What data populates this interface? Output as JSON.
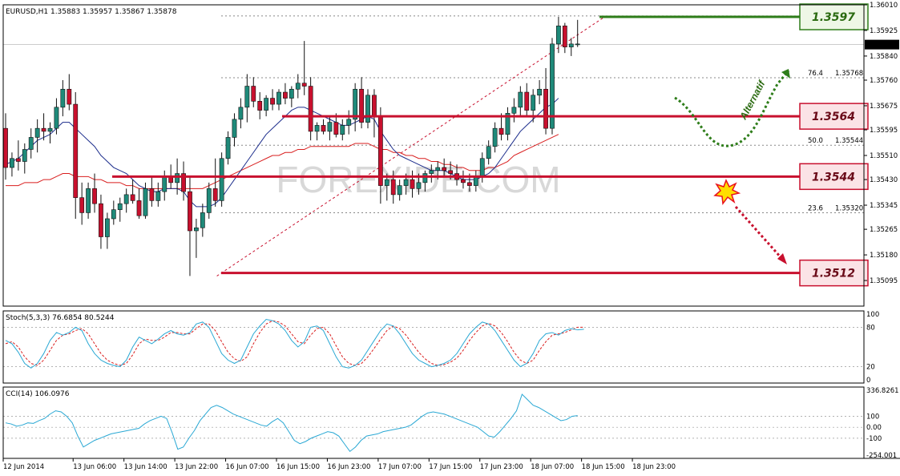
{
  "window": {
    "symbol_header": "EURUSD,H1  1.35883 1.35957 1.35867 1.35878",
    "watermark": "FOREXIDE.COM"
  },
  "colors": {
    "bull_candle": "#1f8a7a",
    "bear_candle": "#c8102e",
    "support_resistance": "#c8102e",
    "target_green": "#2e7d1a",
    "ma_fast": "#1c2d8c",
    "ma_slow": "#d91f1f",
    "stoch_main": "#2aa8d4",
    "stoch_signal": "#d91f1f",
    "cci": "#2aa8d4",
    "current_price_box": "#000000"
  },
  "chart_data": [
    {
      "type": "candlestick",
      "symbol": "EURUSD",
      "timeframe": "H1",
      "ohlc_header": {
        "open": 1.35883,
        "high": 1.35957,
        "low": 1.35867,
        "close": 1.35878
      },
      "ylim": [
        1.3501,
        1.3601
      ],
      "y_ticks": [
        1.3601,
        1.35925,
        1.3584,
        1.3576,
        1.35675,
        1.35595,
        1.3551,
        1.3543,
        1.35345,
        1.35265,
        1.3518,
        1.35095
      ],
      "y_tick_labels": [
        "1.36010",
        "1.35925",
        "1.35840",
        "1.35760",
        "1.35675",
        "1.35595",
        "1.35510",
        "1.35430",
        "1.35345",
        "1.35265",
        "1.35180",
        "1.35095"
      ],
      "x_tick_labels": [
        "12 Jun 2014",
        "13 Jun 06:00",
        "13 Jun 14:00",
        "13 Jun 22:00",
        "16 Jun 07:00",
        "16 Jun 15:00",
        "16 Jun 23:00",
        "17 Jun 07:00",
        "17 Jun 15:00",
        "17 Jun 23:00",
        "18 Jun 07:00",
        "18 Jun 15:00",
        "18 Jun 23:00"
      ],
      "x_tick_index": [
        0,
        11,
        19,
        27,
        35,
        43,
        51,
        59,
        67,
        75,
        83,
        91,
        99
      ],
      "current_price": 1.35878,
      "current_price_label": "1.35878",
      "candles": [
        [
          1.356,
          1.3565,
          1.3543,
          1.3547
        ],
        [
          1.3547,
          1.3552,
          1.3544,
          1.355
        ],
        [
          1.355,
          1.3556,
          1.3546,
          1.3549
        ],
        [
          1.3549,
          1.3555,
          1.3545,
          1.3553
        ],
        [
          1.3553,
          1.356,
          1.355,
          1.3557
        ],
        [
          1.3557,
          1.3563,
          1.3552,
          1.356
        ],
        [
          1.356,
          1.3565,
          1.3556,
          1.3559
        ],
        [
          1.3559,
          1.3562,
          1.3555,
          1.356
        ],
        [
          1.356,
          1.357,
          1.3558,
          1.3567
        ],
        [
          1.3567,
          1.3576,
          1.3564,
          1.3573
        ],
        [
          1.3573,
          1.3578,
          1.3566,
          1.3568
        ],
        [
          1.3568,
          1.3572,
          1.353,
          1.3537
        ],
        [
          1.3537,
          1.3542,
          1.3528,
          1.3532
        ],
        [
          1.3532,
          1.3542,
          1.353,
          1.354
        ],
        [
          1.354,
          1.3545,
          1.3532,
          1.3535
        ],
        [
          1.3535,
          1.3538,
          1.352,
          1.3524
        ],
        [
          1.3524,
          1.3532,
          1.352,
          1.353
        ],
        [
          1.353,
          1.3536,
          1.3528,
          1.3533
        ],
        [
          1.3533,
          1.3537,
          1.3529,
          1.3535
        ],
        [
          1.3535,
          1.354,
          1.3532,
          1.3538
        ],
        [
          1.3538,
          1.3543,
          1.3535,
          1.3536
        ],
        [
          1.3536,
          1.354,
          1.353,
          1.3531
        ],
        [
          1.3531,
          1.3542,
          1.353,
          1.354
        ],
        [
          1.354,
          1.3544,
          1.3534,
          1.3536
        ],
        [
          1.3536,
          1.3542,
          1.3534,
          1.3539
        ],
        [
          1.3539,
          1.3546,
          1.3536,
          1.3544
        ],
        [
          1.3544,
          1.3548,
          1.354,
          1.3542
        ],
        [
          1.3542,
          1.355,
          1.3538,
          1.3545
        ],
        [
          1.3545,
          1.3549,
          1.3536,
          1.3539
        ],
        [
          1.3539,
          1.3544,
          1.3511,
          1.3526
        ],
        [
          1.3526,
          1.353,
          1.3517,
          1.3527
        ],
        [
          1.3527,
          1.3535,
          1.3524,
          1.3532
        ],
        [
          1.3532,
          1.3542,
          1.353,
          1.354
        ],
        [
          1.354,
          1.355,
          1.3534,
          1.3536
        ],
        [
          1.3536,
          1.3552,
          1.3534,
          1.355
        ],
        [
          1.355,
          1.3559,
          1.3548,
          1.3557
        ],
        [
          1.3557,
          1.3565,
          1.3554,
          1.3563
        ],
        [
          1.3563,
          1.357,
          1.356,
          1.3567
        ],
        [
          1.3567,
          1.3578,
          1.3562,
          1.3574
        ],
        [
          1.3574,
          1.3577,
          1.3567,
          1.3569
        ],
        [
          1.3569,
          1.3572,
          1.3563,
          1.3566
        ],
        [
          1.3566,
          1.3571,
          1.3564,
          1.357
        ],
        [
          1.357,
          1.3573,
          1.3566,
          1.3568
        ],
        [
          1.3568,
          1.3573,
          1.3566,
          1.3572
        ],
        [
          1.3572,
          1.3575,
          1.3568,
          1.357
        ],
        [
          1.357,
          1.3574,
          1.3567,
          1.3573
        ],
        [
          1.3573,
          1.3578,
          1.357,
          1.3575
        ],
        [
          1.3575,
          1.3589,
          1.3571,
          1.3574
        ],
        [
          1.3574,
          1.3577,
          1.3556,
          1.3559
        ],
        [
          1.3559,
          1.3562,
          1.3556,
          1.3561
        ],
        [
          1.3561,
          1.3563,
          1.3558,
          1.3559
        ],
        [
          1.3559,
          1.3564,
          1.3556,
          1.3562
        ],
        [
          1.3562,
          1.3565,
          1.3557,
          1.3558
        ],
        [
          1.3558,
          1.3563,
          1.3556,
          1.3561
        ],
        [
          1.3561,
          1.3566,
          1.3558,
          1.3563
        ],
        [
          1.3563,
          1.3575,
          1.3559,
          1.3573
        ],
        [
          1.3573,
          1.3577,
          1.356,
          1.3562
        ],
        [
          1.3562,
          1.3573,
          1.356,
          1.3571
        ],
        [
          1.3571,
          1.3573,
          1.3557,
          1.3564
        ],
        [
          1.3564,
          1.3567,
          1.3535,
          1.3541
        ],
        [
          1.3541,
          1.3545,
          1.3536,
          1.3543
        ],
        [
          1.3543,
          1.3546,
          1.3535,
          1.3538
        ],
        [
          1.3538,
          1.3543,
          1.3536,
          1.3541
        ],
        [
          1.3541,
          1.3545,
          1.3538,
          1.3543
        ],
        [
          1.3543,
          1.3546,
          1.3537,
          1.354
        ],
        [
          1.354,
          1.3545,
          1.3538,
          1.3542
        ],
        [
          1.3542,
          1.3546,
          1.3539,
          1.3545
        ],
        [
          1.3545,
          1.3548,
          1.3542,
          1.3546
        ],
        [
          1.3546,
          1.3549,
          1.3543,
          1.3547
        ],
        [
          1.3547,
          1.355,
          1.3544,
          1.3546
        ],
        [
          1.3546,
          1.3549,
          1.3543,
          1.3545
        ],
        [
          1.3545,
          1.3548,
          1.3541,
          1.3543
        ],
        [
          1.3543,
          1.3546,
          1.354,
          1.3542
        ],
        [
          1.3542,
          1.3545,
          1.3539,
          1.3541
        ],
        [
          1.3541,
          1.3546,
          1.3539,
          1.3544
        ],
        [
          1.3544,
          1.3552,
          1.3542,
          1.355
        ],
        [
          1.355,
          1.3556,
          1.3548,
          1.3554
        ],
        [
          1.3554,
          1.3562,
          1.3552,
          1.356
        ],
        [
          1.356,
          1.3565,
          1.3556,
          1.3558
        ],
        [
          1.3558,
          1.3567,
          1.3556,
          1.3565
        ],
        [
          1.3565,
          1.357,
          1.3562,
          1.3567
        ],
        [
          1.3567,
          1.3574,
          1.3564,
          1.3572
        ],
        [
          1.3572,
          1.3575,
          1.3564,
          1.3566
        ],
        [
          1.3566,
          1.3573,
          1.3562,
          1.3571
        ],
        [
          1.3571,
          1.3576,
          1.3568,
          1.3573
        ],
        [
          1.3573,
          1.358,
          1.3558,
          1.356
        ],
        [
          1.356,
          1.359,
          1.3558,
          1.3588
        ],
        [
          1.3588,
          1.3597,
          1.3585,
          1.3594
        ],
        [
          1.3594,
          1.3595,
          1.3585,
          1.3587
        ],
        [
          1.3587,
          1.359,
          1.3584,
          1.3588
        ],
        [
          1.3588,
          1.3596,
          1.3587,
          1.3588
        ]
      ],
      "ma_fast": [
        1.3548,
        1.3549,
        1.355,
        1.3552,
        1.3554,
        1.3556,
        1.3557,
        1.3558,
        1.356,
        1.3562,
        1.3562,
        1.356,
        1.3558,
        1.3556,
        1.3554,
        1.3551,
        1.3549,
        1.3547,
        1.3546,
        1.3545,
        1.3543,
        1.3541,
        1.354,
        1.3539,
        1.3539,
        1.354,
        1.354,
        1.354,
        1.3539,
        1.3536,
        1.3534,
        1.3534,
        1.3534,
        1.3535,
        1.3537,
        1.354,
        1.3543,
        1.3546,
        1.3549,
        1.3552,
        1.3555,
        1.3558,
        1.356,
        1.3562,
        1.3564,
        1.3566,
        1.3567,
        1.3567,
        1.3566,
        1.3565,
        1.3564,
        1.3563,
        1.3562,
        1.3561,
        1.3561,
        1.3562,
        1.3563,
        1.3564,
        1.3563,
        1.3559,
        1.3556,
        1.3553,
        1.3551,
        1.355,
        1.3549,
        1.3548,
        1.3547,
        1.3546,
        1.3546,
        1.3546,
        1.3545,
        1.3544,
        1.3543,
        1.3543,
        1.3543,
        1.3544,
        1.3545,
        1.3547,
        1.355,
        1.3553,
        1.3556,
        1.3559,
        1.3561,
        1.3563,
        1.3565,
        1.3567,
        1.3568,
        1.357
      ],
      "ma_slow": [
        1.3541,
        1.3541,
        1.3541,
        1.3542,
        1.3542,
        1.3542,
        1.3543,
        1.3543,
        1.3544,
        1.3545,
        1.3545,
        1.3544,
        1.3544,
        1.3544,
        1.3543,
        1.3543,
        1.3542,
        1.3542,
        1.3542,
        1.3541,
        1.3541,
        1.354,
        1.354,
        1.354,
        1.354,
        1.354,
        1.354,
        1.354,
        1.354,
        1.354,
        1.354,
        1.354,
        1.3541,
        1.3542,
        1.3543,
        1.3544,
        1.3545,
        1.3546,
        1.3547,
        1.3548,
        1.3549,
        1.355,
        1.3551,
        1.3551,
        1.3552,
        1.3552,
        1.3553,
        1.3553,
        1.3554,
        1.3554,
        1.3554,
        1.3554,
        1.3554,
        1.3554,
        1.3554,
        1.3555,
        1.3555,
        1.3555,
        1.3554,
        1.3553,
        1.3553,
        1.3552,
        1.3552,
        1.3551,
        1.3551,
        1.355,
        1.355,
        1.3549,
        1.3549,
        1.3548,
        1.3548,
        1.3547,
        1.3547,
        1.3546,
        1.3546,
        1.3546,
        1.3547,
        1.3547,
        1.3548,
        1.3549,
        1.3551,
        1.3552,
        1.3553,
        1.3554,
        1.3555,
        1.3556,
        1.3557,
        1.3558
      ],
      "levels": [
        {
          "price": 1.3597,
          "label": "1.3597",
          "kind": "target"
        },
        {
          "price": 1.3564,
          "label": "1.3564",
          "kind": "resistance"
        },
        {
          "price": 1.3544,
          "label": "1.3544",
          "kind": "support"
        },
        {
          "price": 1.3512,
          "label": "1.3512",
          "kind": "support"
        }
      ],
      "fibonacci": [
        {
          "ratio": "76.4",
          "price_label": "1.35768",
          "price": 1.35768
        },
        {
          "ratio": "50.0",
          "price_label": "1.35544",
          "price": 1.35544
        },
        {
          "ratio": "23.6",
          "price_label": "1.35320",
          "price": 1.3532
        }
      ],
      "annotations": {
        "alternative_label": "Alternatif"
      }
    },
    {
      "type": "line",
      "name": "stochastic",
      "header": "Stoch(5,3,3) 76.6854 80.5244",
      "ylim": [
        0,
        100
      ],
      "y_ticks": [
        100,
        80,
        20,
        0
      ],
      "y_tick_labels": [
        "100",
        "80",
        "20",
        "0"
      ],
      "series": [
        {
          "values": [
            60,
            55,
            42,
            25,
            18,
            25,
            40,
            60,
            72,
            68,
            72,
            80,
            75,
            55,
            40,
            30,
            25,
            22,
            20,
            30,
            50,
            65,
            60,
            55,
            62,
            70,
            75,
            70,
            68,
            72,
            85,
            88,
            80,
            60,
            40,
            30,
            25,
            30,
            50,
            70,
            82,
            92,
            90,
            85,
            75,
            60,
            50,
            58,
            80,
            82,
            75,
            55,
            35,
            20,
            18,
            22,
            30,
            45,
            60,
            75,
            85,
            82,
            70,
            55,
            40,
            30,
            25,
            20,
            22,
            25,
            30,
            40,
            55,
            70,
            80,
            88,
            85,
            75,
            60,
            45,
            30,
            20,
            25,
            40,
            60,
            70,
            72,
            68,
            75,
            78,
            76,
            77
          ]
        },
        {
          "values": [
            55,
            58,
            50,
            35,
            25,
            22,
            30,
            45,
            60,
            68,
            70,
            75,
            78,
            70,
            55,
            40,
            30,
            25,
            22,
            25,
            38,
            55,
            62,
            60,
            60,
            65,
            72,
            72,
            70,
            70,
            78,
            85,
            85,
            75,
            58,
            42,
            32,
            28,
            35,
            55,
            72,
            85,
            90,
            88,
            82,
            70,
            58,
            55,
            68,
            78,
            80,
            70,
            52,
            35,
            25,
            22,
            25,
            35,
            48,
            62,
            75,
            82,
            78,
            68,
            55,
            42,
            32,
            25,
            22,
            23,
            27,
            33,
            45,
            60,
            72,
            82,
            86,
            82,
            72,
            58,
            42,
            30,
            25,
            30,
            45,
            58,
            68,
            70,
            72,
            76,
            80,
            80
          ]
        }
      ]
    },
    {
      "type": "line",
      "name": "cci",
      "header": "CCI(14) 106.0976",
      "ylim": [
        -254.001,
        336.8261
      ],
      "y_ticks": [
        336.8261,
        100,
        0,
        -100,
        -254.001
      ],
      "y_tick_labels": [
        "336.8261",
        "100",
        "0.00",
        "-100",
        "-254.001"
      ],
      "series": [
        {
          "values": [
            40,
            30,
            10,
            20,
            40,
            35,
            60,
            80,
            120,
            150,
            140,
            100,
            40,
            -80,
            -180,
            -150,
            -120,
            -100,
            -80,
            -60,
            -50,
            -40,
            -30,
            -20,
            -10,
            30,
            60,
            80,
            100,
            80,
            -50,
            -200,
            -180,
            -100,
            -30,
            60,
            120,
            180,
            200,
            180,
            150,
            120,
            100,
            80,
            60,
            40,
            20,
            10,
            50,
            80,
            40,
            -40,
            -120,
            -150,
            -130,
            -100,
            -80,
            -60,
            -40,
            -50,
            -80,
            -150,
            -220,
            -180,
            -120,
            -80,
            -70,
            -60,
            -40,
            -30,
            -20,
            -10,
            0,
            20,
            60,
            100,
            130,
            140,
            130,
            120,
            100,
            80,
            60,
            40,
            20,
            0,
            -40,
            -80,
            -90,
            -40,
            20,
            80,
            150,
            300,
            250,
            200,
            180,
            150,
            120,
            90,
            60,
            70,
            100,
            106
          ]
        }
      ]
    }
  ]
}
